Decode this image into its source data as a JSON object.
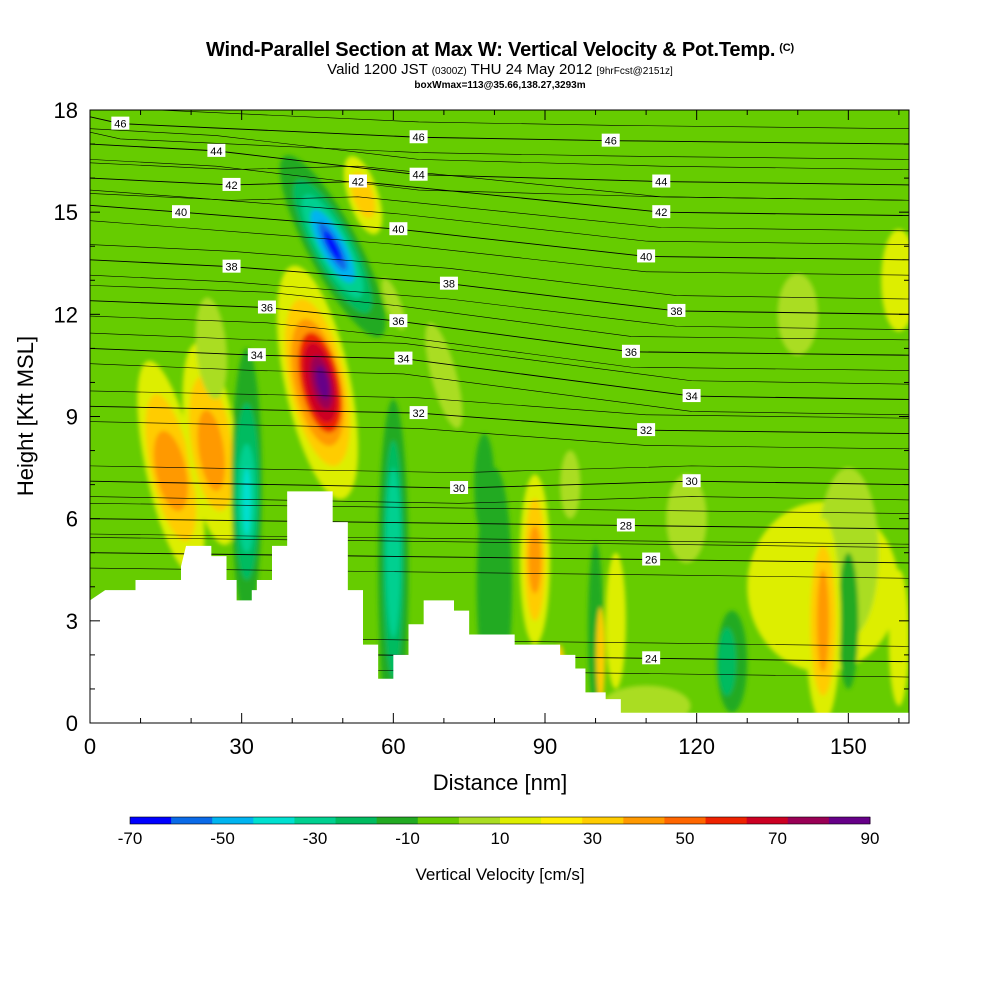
{
  "header": {
    "title": "Wind-Parallel Section at Max W: Vertical Velocity & Pot.Temp.",
    "copyright": "(C)",
    "valid_main": "Valid 1200 JST",
    "valid_utc": "(0300Z)",
    "valid_date": "THU 24 May 2012",
    "forecast": "[9hrFcst@2151z]",
    "box_info": "boxWmax=113@35.66,138.27,3293m"
  },
  "chart_data": {
    "type": "heatmap",
    "title": "Wind-Parallel Section at Max W: Vertical Velocity & Pot.Temp.",
    "xlabel": "Distance [nm]",
    "ylabel": "Height [Kft MSL]",
    "xlim": [
      0,
      162
    ],
    "ylim": [
      0,
      18
    ],
    "xticks": [
      0,
      30,
      60,
      90,
      120,
      150
    ],
    "yticks": [
      0,
      3,
      6,
      9,
      12,
      15,
      18
    ],
    "colorbar": {
      "label": "Vertical Velocity [cm/s]",
      "ticks": [
        -70,
        -50,
        -30,
        -10,
        10,
        30,
        50,
        70,
        90
      ],
      "bounds": [
        -70,
        90
      ],
      "colors": [
        "#0000ff",
        "#0a6ae8",
        "#00b4f0",
        "#00e0d0",
        "#00d090",
        "#00bb60",
        "#22aa22",
        "#66cc00",
        "#aadd22",
        "#ddee00",
        "#ffee00",
        "#ffcc00",
        "#ff9900",
        "#ff6600",
        "#ee2200",
        "#cc0022",
        "#990055",
        "#660088"
      ]
    },
    "terrain_kft": [
      [
        0,
        3.6
      ],
      [
        3,
        3.9
      ],
      [
        9,
        3.9
      ],
      [
        9,
        4.2
      ],
      [
        18,
        4.2
      ],
      [
        18,
        4.6
      ],
      [
        19,
        5.2
      ],
      [
        24,
        5.2
      ],
      [
        24,
        4.9
      ],
      [
        27,
        4.9
      ],
      [
        27,
        4.2
      ],
      [
        29,
        4.2
      ],
      [
        29,
        3.6
      ],
      [
        32,
        3.6
      ],
      [
        32,
        3.9
      ],
      [
        33,
        3.9
      ],
      [
        33,
        4.2
      ],
      [
        36,
        4.2
      ],
      [
        36,
        5.2
      ],
      [
        39,
        5.2
      ],
      [
        39,
        6.8
      ],
      [
        48,
        6.8
      ],
      [
        48,
        5.9
      ],
      [
        51,
        5.9
      ],
      [
        51,
        3.9
      ],
      [
        54,
        3.9
      ],
      [
        54,
        2.3
      ],
      [
        57,
        2.3
      ],
      [
        57,
        1.3
      ],
      [
        60,
        1.3
      ],
      [
        60,
        2.0
      ],
      [
        63,
        2.0
      ],
      [
        63,
        2.9
      ],
      [
        66,
        2.9
      ],
      [
        66,
        3.6
      ],
      [
        72,
        3.6
      ],
      [
        72,
        3.3
      ],
      [
        75,
        3.3
      ],
      [
        75,
        2.6
      ],
      [
        84,
        2.6
      ],
      [
        84,
        2.3
      ],
      [
        93,
        2.3
      ],
      [
        93,
        2.0
      ],
      [
        96,
        2.0
      ],
      [
        96,
        1.6
      ],
      [
        98,
        1.6
      ],
      [
        98,
        0.9
      ],
      [
        102,
        0.9
      ],
      [
        102,
        0.7
      ],
      [
        105,
        0.7
      ],
      [
        105,
        0.3
      ],
      [
        162,
        0.3
      ]
    ],
    "theta_labels": [
      {
        "text": "46",
        "x": 6,
        "y": 17.6
      },
      {
        "text": "44",
        "x": 25,
        "y": 16.8
      },
      {
        "text": "42",
        "x": 28,
        "y": 15.8
      },
      {
        "text": "40",
        "x": 18,
        "y": 15.0
      },
      {
        "text": "38",
        "x": 28,
        "y": 13.4
      },
      {
        "text": "36",
        "x": 35,
        "y": 12.2
      },
      {
        "text": "34",
        "x": 33,
        "y": 10.8
      },
      {
        "text": "46",
        "x": 65,
        "y": 17.2
      },
      {
        "text": "44",
        "x": 65,
        "y": 16.1
      },
      {
        "text": "42",
        "x": 53,
        "y": 15.9
      },
      {
        "text": "40",
        "x": 61,
        "y": 14.5
      },
      {
        "text": "38",
        "x": 71,
        "y": 12.9
      },
      {
        "text": "36",
        "x": 61,
        "y": 11.8
      },
      {
        "text": "34",
        "x": 62,
        "y": 10.7
      },
      {
        "text": "32",
        "x": 65,
        "y": 9.1
      },
      {
        "text": "30",
        "x": 73,
        "y": 6.9
      },
      {
        "text": "46",
        "x": 103,
        "y": 17.1
      },
      {
        "text": "44",
        "x": 113,
        "y": 15.9
      },
      {
        "text": "42",
        "x": 113,
        "y": 15.0
      },
      {
        "text": "40",
        "x": 110,
        "y": 13.7
      },
      {
        "text": "38",
        "x": 116,
        "y": 12.1
      },
      {
        "text": "36",
        "x": 107,
        "y": 10.9
      },
      {
        "text": "34",
        "x": 119,
        "y": 9.6
      },
      {
        "text": "32",
        "x": 110,
        "y": 8.6
      },
      {
        "text": "30",
        "x": 119,
        "y": 7.1
      },
      {
        "text": "28",
        "x": 106,
        "y": 5.8
      },
      {
        "text": "26",
        "x": 111,
        "y": 4.8
      },
      {
        "text": "24",
        "x": 111,
        "y": 1.9
      }
    ]
  }
}
